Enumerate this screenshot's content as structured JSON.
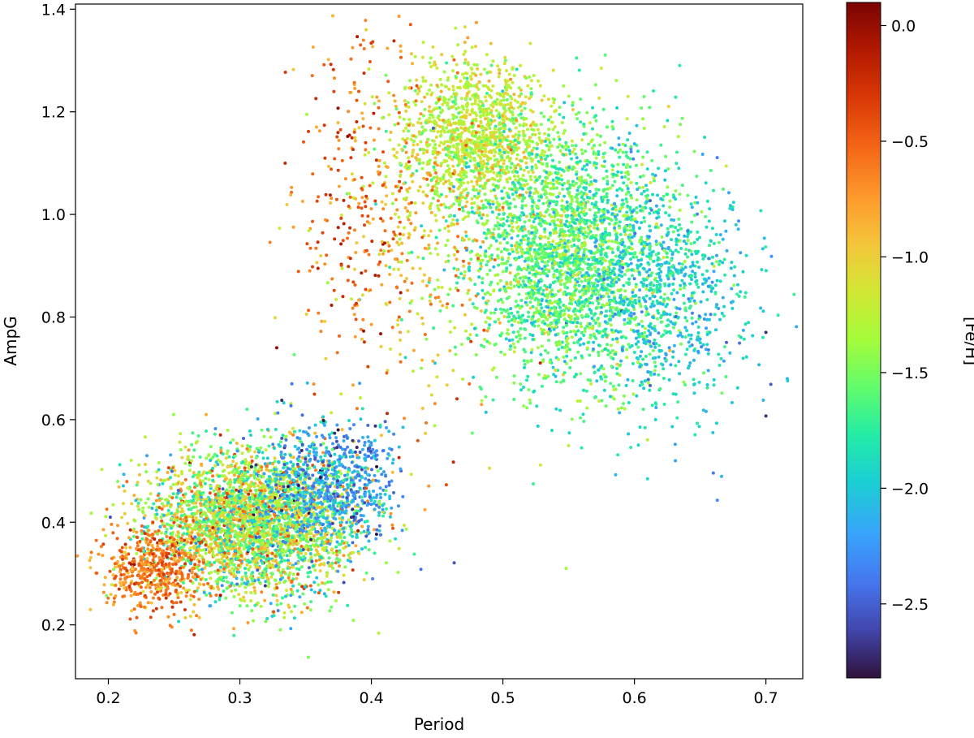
{
  "chart_data": {
    "type": "scatter",
    "xlabel": "Period",
    "ylabel": "AmpG",
    "xlim": [
      0.175,
      0.728
    ],
    "ylim": [
      0.095,
      1.41
    ],
    "x_ticks": [
      0.2,
      0.3,
      0.4,
      0.5,
      0.6,
      0.7
    ],
    "x_tick_labels": [
      "0.2",
      "0.3",
      "0.4",
      "0.5",
      "0.6",
      "0.7"
    ],
    "y_ticks": [
      0.2,
      0.4,
      0.6,
      0.8,
      1.0,
      1.2,
      1.4
    ],
    "y_tick_labels": [
      "0.2",
      "0.4",
      "0.6",
      "0.8",
      "1.0",
      "1.2",
      "1.4"
    ],
    "grid": false,
    "colorbar": {
      "label": "[Fe/H]",
      "colormap": "turbo",
      "range": [
        -2.82,
        0.1
      ],
      "ticks": [
        0.0,
        -0.5,
        -1.0,
        -1.5,
        -2.0,
        -2.5
      ],
      "tick_labels": [
        "0.0",
        "−0.5",
        "−1.0",
        "−1.5",
        "−2.0",
        "−2.5"
      ]
    },
    "series": [
      {
        "description_points": "dense clouds; approximated by cluster samples",
        "clusters": [
          {
            "x_mean": 0.31,
            "x_sd": 0.04,
            "y_mean": 0.4,
            "y_sd": 0.07,
            "feh_mean": -1.35,
            "feh_sd": 0.45,
            "count": 3200
          },
          {
            "x_mean": 0.235,
            "x_sd": 0.02,
            "y_mean": 0.31,
            "y_sd": 0.04,
            "feh_mean": -0.6,
            "feh_sd": 0.2,
            "count": 500
          },
          {
            "x_mean": 0.37,
            "x_sd": 0.025,
            "y_mean": 0.48,
            "y_sd": 0.06,
            "feh_mean": -2.2,
            "feh_sd": 0.25,
            "count": 700
          },
          {
            "x_mean": 0.48,
            "x_sd": 0.03,
            "y_mean": 1.15,
            "y_sd": 0.07,
            "feh_mean": -1.25,
            "feh_sd": 0.2,
            "count": 1300
          },
          {
            "x_mean": 0.55,
            "x_sd": 0.04,
            "y_mean": 0.92,
            "y_sd": 0.12,
            "feh_mean": -1.6,
            "feh_sd": 0.25,
            "count": 2600
          },
          {
            "x_mean": 0.62,
            "x_sd": 0.035,
            "y_mean": 0.85,
            "y_sd": 0.12,
            "feh_mean": -1.95,
            "feh_sd": 0.2,
            "count": 800
          },
          {
            "x_mean": 0.43,
            "x_sd": 0.04,
            "y_mean": 1.0,
            "y_sd": 0.18,
            "feh_mean": -0.85,
            "feh_sd": 0.25,
            "count": 450
          },
          {
            "x_mean": 0.385,
            "x_sd": 0.02,
            "y_mean": 1.02,
            "y_sd": 0.16,
            "feh_mean": -0.35,
            "feh_sd": 0.15,
            "count": 120
          }
        ],
        "outliers": [
          {
            "x": 0.328,
            "y": 0.74,
            "feh": 0.02
          },
          {
            "x": 0.7,
            "y": 0.77,
            "feh": -2.7
          },
          {
            "x": 0.7,
            "y": 0.607,
            "feh": -2.7
          },
          {
            "x": 0.698,
            "y": 0.638,
            "feh": -2.1
          },
          {
            "x": 0.463,
            "y": 0.321,
            "feh": -2.55
          },
          {
            "x": 0.548,
            "y": 0.31,
            "feh": -1.35
          },
          {
            "x": 0.352,
            "y": 0.137,
            "feh": -1.45
          },
          {
            "x": 0.389,
            "y": 0.546,
            "feh": -2.75
          },
          {
            "x": 0.421,
            "y": 0.526,
            "feh": -0.2
          },
          {
            "x": 0.412,
            "y": 0.612,
            "feh": -0.2
          },
          {
            "x": 0.457,
            "y": 0.473,
            "feh": -0.4
          },
          {
            "x": 0.556,
            "y": 1.305,
            "feh": -1.7
          },
          {
            "x": 0.396,
            "y": 1.36,
            "feh": -1.0
          },
          {
            "x": 0.464,
            "y": 1.363,
            "feh": -1.3
          },
          {
            "x": 0.663,
            "y": 0.443,
            "feh": -2.3
          },
          {
            "x": 0.66,
            "y": 0.496,
            "feh": -2.4
          }
        ]
      }
    ]
  }
}
